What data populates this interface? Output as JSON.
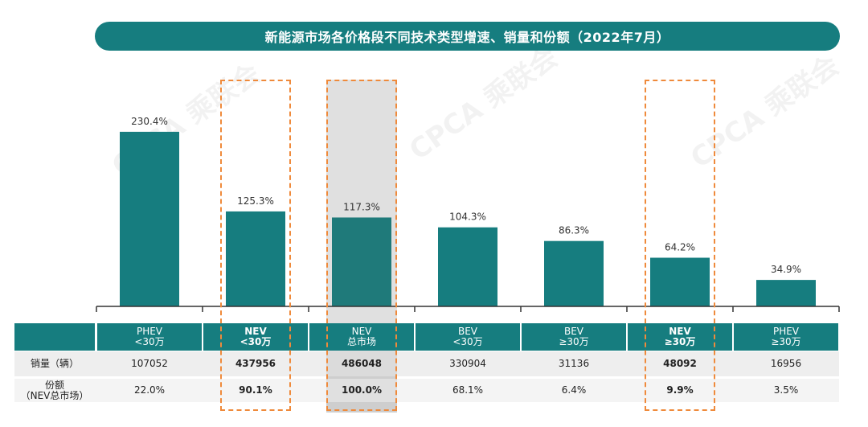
{
  "title": "新能源市场各价格段不同技术类型增速、销量和份额（2022年7月）",
  "chart_data": {
    "type": "bar",
    "categories": [
      "PHEV <30万",
      "NEV <30万",
      "NEV 总市场",
      "BEV <30万",
      "BEV ≥30万",
      "NEV ≥30万",
      "PHEV ≥30万"
    ],
    "values": [
      230.4,
      125.3,
      117.3,
      104.3,
      86.3,
      64.2,
      34.9
    ],
    "value_labels": [
      "230.4%",
      "125.3%",
      "117.3%",
      "104.3%",
      "86.3%",
      "64.2%",
      "34.9%"
    ],
    "ylim": [
      0,
      260
    ],
    "bar_color": "#167d7f",
    "highlight_bar_color": "#1f7a7a",
    "highlight_columns": [
      1,
      2,
      5
    ],
    "shaded_column": 2,
    "highlight_border_color": "#ef8a3b"
  },
  "table": {
    "headers": [
      {
        "line1": "PHEV",
        "line2": "<30万",
        "bold": false
      },
      {
        "line1": "NEV",
        "line2": "<30万",
        "bold": true
      },
      {
        "line1": "NEV",
        "line2": "总市场",
        "bold": false
      },
      {
        "line1": "BEV",
        "line2": "<30万",
        "bold": false
      },
      {
        "line1": "BEV",
        "line2": "≥30万",
        "bold": false
      },
      {
        "line1": "NEV",
        "line2": "≥30万",
        "bold": true
      },
      {
        "line1": "PHEV",
        "line2": "≥30万",
        "bold": false
      }
    ],
    "rows": [
      {
        "label": "销量（辆）",
        "values": [
          "107052",
          "437956",
          "486048",
          "330904",
          "31136",
          "48092",
          "16956"
        ]
      },
      {
        "label": "份额\n（NEV总市场）",
        "values": [
          "22.0%",
          "90.1%",
          "100.0%",
          "68.1%",
          "6.4%",
          "9.9%",
          "3.5%"
        ]
      }
    ],
    "bold_columns": [
      1,
      2,
      5
    ]
  },
  "watermark": "CPCA 乘联会"
}
